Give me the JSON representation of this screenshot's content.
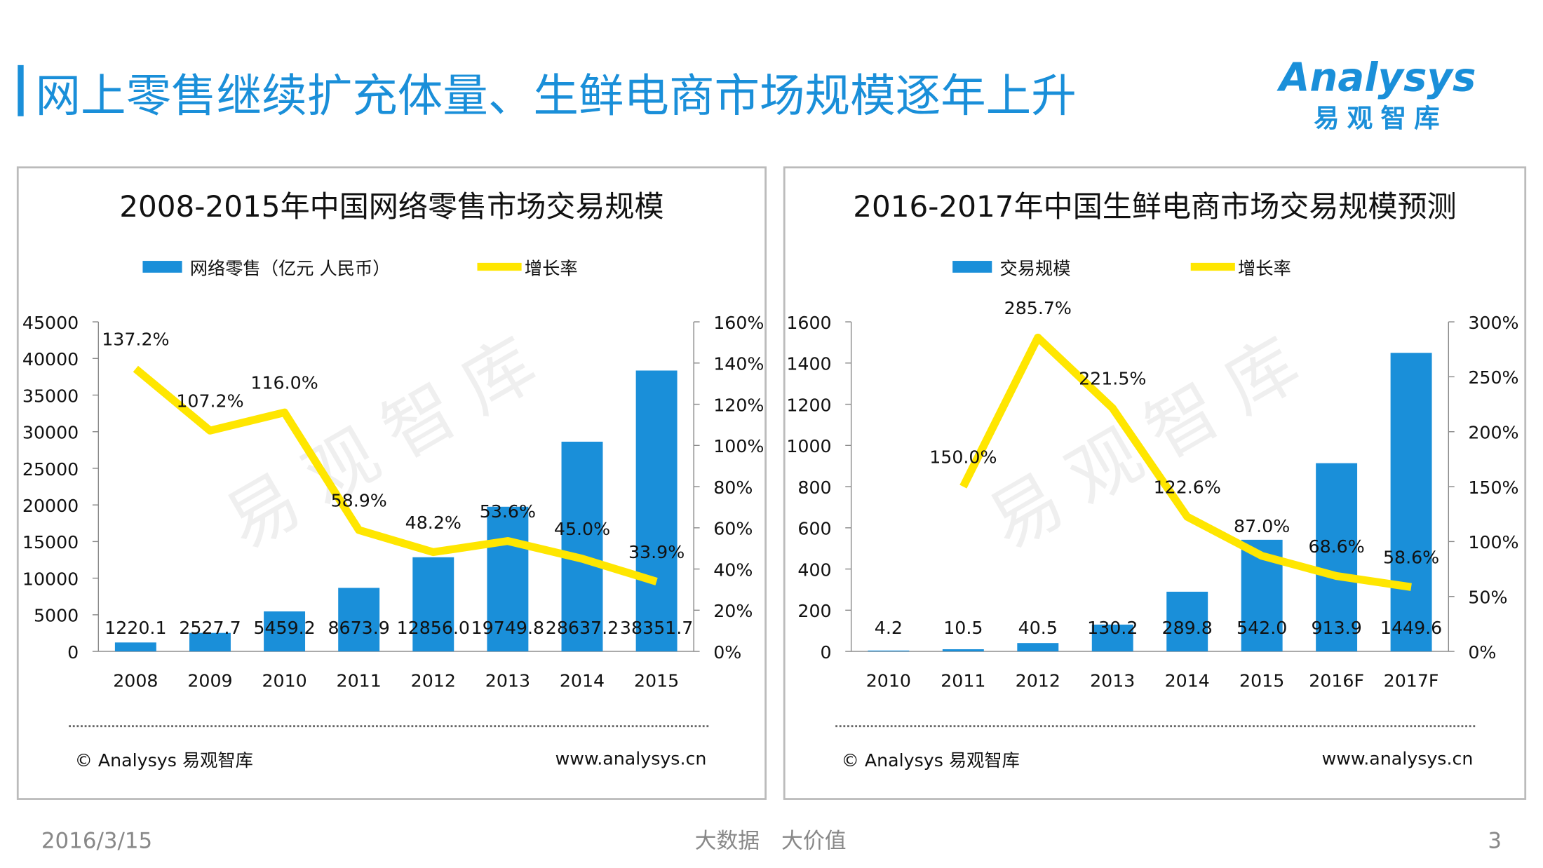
{
  "header": {
    "title": "网上零售继续扩充体量、生鲜电商市场规模逐年上升",
    "logo_text": "Analysys",
    "logo_subtext": "易观智库"
  },
  "chart_data": [
    {
      "type": "bar",
      "title": "2008-2015年中国网络零售市场交易规模",
      "categories": [
        "2008",
        "2009",
        "2010",
        "2011",
        "2012",
        "2013",
        "2014",
        "2015"
      ],
      "series": [
        {
          "name": "网络零售（亿元 人民币）",
          "color": "#1a8fd9",
          "values": [
            1220.1,
            2527.7,
            5459.2,
            8673.9,
            12856.0,
            19749.8,
            28637.2,
            38351.7
          ],
          "value_labels": [
            "1220.1",
            "2527.7",
            "5459.2",
            "8673.9",
            "12856.0",
            "19749.8",
            "28637.2",
            "38351.7"
          ]
        },
        {
          "name": "增长率",
          "type": "line",
          "axis": "y2",
          "color": "#ffe600",
          "values": [
            137.2,
            107.2,
            116.0,
            58.9,
            48.2,
            53.6,
            45.0,
            33.9
          ],
          "value_labels": [
            "137.2%",
            "107.2%",
            "116.0%",
            "58.9%",
            "48.2%",
            "53.6%",
            "45.0%",
            "33.9%"
          ]
        }
      ],
      "ylim": [
        0,
        45000
      ],
      "yticks": [
        0,
        5000,
        10000,
        15000,
        20000,
        25000,
        30000,
        35000,
        40000,
        45000
      ],
      "y2lim": [
        0,
        160
      ],
      "y2ticks": [
        {
          "value": 0,
          "label": "0%"
        },
        {
          "value": 20,
          "label": "20%"
        },
        {
          "value": 40,
          "label": "40%"
        },
        {
          "value": 60,
          "label": "60%"
        },
        {
          "value": 80,
          "label": "80%"
        },
        {
          "value": 100,
          "label": "100%"
        },
        {
          "value": 120,
          "label": "120%"
        },
        {
          "value": 140,
          "label": "140%"
        },
        {
          "value": 160,
          "label": "160%"
        }
      ],
      "legend": "top",
      "grid": false,
      "watermark": "易观智库",
      "source": "© Analysys 易观智库",
      "website": "www.analysys.cn"
    },
    {
      "type": "bar",
      "title": "2016-2017年中国生鲜电商市场交易规模预测",
      "categories": [
        "2010",
        "2011",
        "2012",
        "2013",
        "2014",
        "2015",
        "2016F",
        "2017F"
      ],
      "series": [
        {
          "name": "交易规模",
          "color": "#1a8fd9",
          "values": [
            4.2,
            10.5,
            40.5,
            130.2,
            289.8,
            542.0,
            913.9,
            1449.6
          ],
          "value_labels": [
            "4.2",
            "10.5",
            "40.5",
            "130.2",
            "289.8",
            "542.0",
            "913.9",
            "1449.6"
          ]
        },
        {
          "name": "增长率",
          "type": "line",
          "axis": "y2",
          "color": "#ffe600",
          "values": [
            null,
            150.0,
            285.7,
            221.5,
            122.6,
            87.0,
            68.6,
            58.6
          ],
          "value_labels": [
            null,
            "150.0%",
            "285.7%",
            "221.5%",
            "122.6%",
            "87.0%",
            "68.6%",
            "58.6%"
          ]
        }
      ],
      "ylim": [
        0,
        1600
      ],
      "yticks": [
        0,
        200,
        400,
        600,
        800,
        1000,
        1200,
        1400,
        1600
      ],
      "y2lim": [
        0,
        300
      ],
      "y2ticks": [
        {
          "value": 0,
          "label": "0%"
        },
        {
          "value": 50,
          "label": "50%"
        },
        {
          "value": 100,
          "label": "100%"
        },
        {
          "value": 150,
          "label": "150%"
        },
        {
          "value": 200,
          "label": "200%"
        },
        {
          "value": 250,
          "label": "250%"
        },
        {
          "value": 300,
          "label": "300%"
        }
      ],
      "legend": "top",
      "grid": false,
      "watermark": "易观智库",
      "source": "© Analysys 易观智库",
      "website": "www.analysys.cn"
    }
  ],
  "footer": {
    "date": "2016/3/15",
    "slogan": "大数据　大价值",
    "page": "3"
  }
}
